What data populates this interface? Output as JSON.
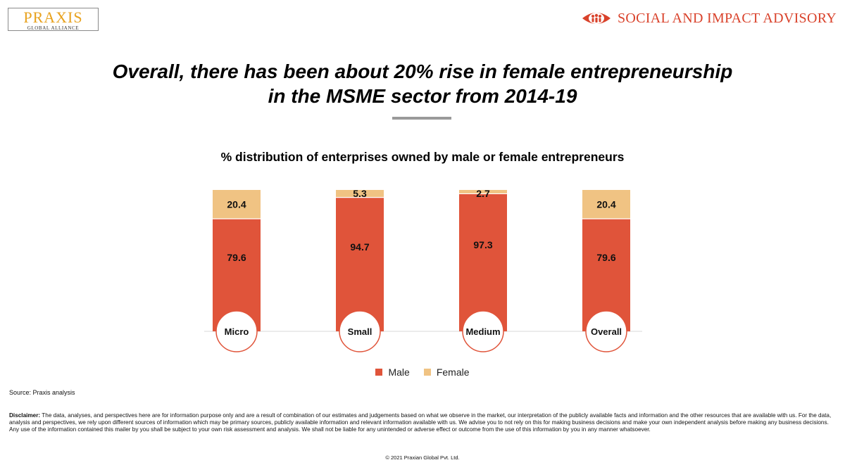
{
  "header": {
    "logo_main": "PRAXIS",
    "logo_sub": "GLOBAL ALLIANCE",
    "brand_right": "SOCIAL AND IMPACT ADVISORY"
  },
  "headline": {
    "line1": "Overall, there has been about 20% rise in female entrepreneurship",
    "line2": "in the MSME sector from 2014-19"
  },
  "colors": {
    "male": "#e0543a",
    "female": "#f0c383",
    "accent": "#d9422b",
    "logo": "#e8a21e"
  },
  "chart_data": {
    "type": "bar",
    "stacked": true,
    "title": "% distribution of enterprises owned by male or female entrepreneurs",
    "categories": [
      "Micro",
      "Small",
      "Medium",
      "Overall"
    ],
    "series": [
      {
        "name": "Male",
        "values": [
          79.6,
          94.7,
          97.3,
          79.6
        ]
      },
      {
        "name": "Female",
        "values": [
          20.4,
          5.3,
          2.7,
          20.4
        ]
      }
    ],
    "ylim": [
      0,
      100
    ],
    "xlabel": "",
    "ylabel": "",
    "grid": false,
    "legend": "bottom"
  },
  "footer": {
    "source": "Source: Praxis analysis",
    "disclaimer_label": "Disclaimer:",
    "disclaimer_text": " The data, analyses, and perspectives here are for information purpose only and are a result of combination of our estimates and judgements based on what we observe in the market, our interpretation of the publicly available facts and information and the other resources that are available with us. For the data, analysis and perspectives, we rely upon different sources of information which may be primary sources, publicly available information and relevant information available with us.  We advise you to not rely on this for making business decisions and make your own independent analysis before making any business decisions. Any use of the information contained this mailer by you shall be subject to your own risk assessment and analysis. We shall not be liable for any unintended or adverse effect or outcome from the use of this information by you in any manner whatsoever.",
    "copyright": "© 2021 Praxian Global Pvt. Ltd."
  }
}
